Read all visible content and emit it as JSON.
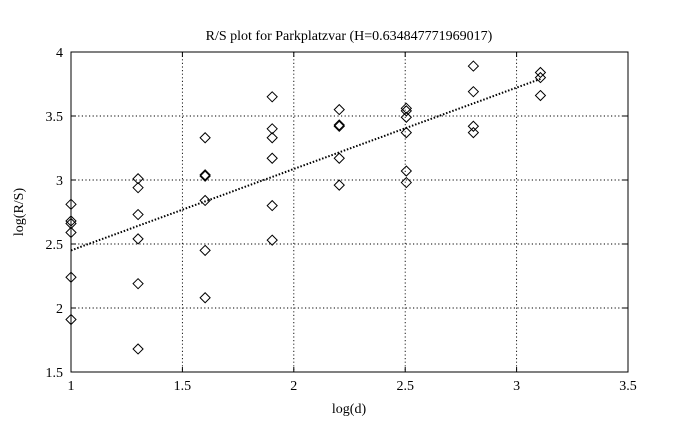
{
  "chart_data": {
    "type": "scatter",
    "title": "R/S plot for Parkplatzvar (H=0.634847771969017)",
    "xlabel": "log(d)",
    "ylabel": "log(R/S)",
    "xlim": [
      1,
      3.5
    ],
    "ylim": [
      1.5,
      4
    ],
    "xticks": [
      "1",
      "1.5",
      "2",
      "2.5",
      "3",
      "3.5"
    ],
    "yticks": [
      "1.5",
      "2",
      "2.5",
      "3",
      "3.5",
      "4"
    ],
    "grid": true,
    "marker": "diamond",
    "points": [
      {
        "x": 1.0,
        "y": 2.81
      },
      {
        "x": 1.0,
        "y": 2.68
      },
      {
        "x": 1.0,
        "y": 2.66
      },
      {
        "x": 1.0,
        "y": 2.59
      },
      {
        "x": 1.0,
        "y": 2.24
      },
      {
        "x": 1.0,
        "y": 1.91
      },
      {
        "x": 1.301,
        "y": 3.01
      },
      {
        "x": 1.301,
        "y": 2.94
      },
      {
        "x": 1.301,
        "y": 2.73
      },
      {
        "x": 1.301,
        "y": 2.54
      },
      {
        "x": 1.301,
        "y": 2.19
      },
      {
        "x": 1.301,
        "y": 1.68
      },
      {
        "x": 1.602,
        "y": 3.33
      },
      {
        "x": 1.602,
        "y": 3.04
      },
      {
        "x": 1.602,
        "y": 3.03
      },
      {
        "x": 1.602,
        "y": 2.84
      },
      {
        "x": 1.602,
        "y": 2.45
      },
      {
        "x": 1.602,
        "y": 2.08
      },
      {
        "x": 1.903,
        "y": 3.65
      },
      {
        "x": 1.903,
        "y": 3.4
      },
      {
        "x": 1.903,
        "y": 3.33
      },
      {
        "x": 1.903,
        "y": 3.17
      },
      {
        "x": 1.903,
        "y": 2.8
      },
      {
        "x": 1.903,
        "y": 2.53
      },
      {
        "x": 2.204,
        "y": 3.55
      },
      {
        "x": 2.204,
        "y": 3.43
      },
      {
        "x": 2.204,
        "y": 3.42
      },
      {
        "x": 2.204,
        "y": 3.17
      },
      {
        "x": 2.204,
        "y": 2.96
      },
      {
        "x": 2.505,
        "y": 3.56
      },
      {
        "x": 2.505,
        "y": 3.54
      },
      {
        "x": 2.505,
        "y": 3.49
      },
      {
        "x": 2.505,
        "y": 3.37
      },
      {
        "x": 2.505,
        "y": 3.07
      },
      {
        "x": 2.505,
        "y": 2.98
      },
      {
        "x": 2.806,
        "y": 3.89
      },
      {
        "x": 2.806,
        "y": 3.69
      },
      {
        "x": 2.806,
        "y": 3.42
      },
      {
        "x": 2.806,
        "y": 3.37
      },
      {
        "x": 3.107,
        "y": 3.84
      },
      {
        "x": 3.107,
        "y": 3.8
      },
      {
        "x": 3.107,
        "y": 3.66
      }
    ],
    "fit_line": {
      "x": [
        1.0,
        3.107
      ],
      "y": [
        2.45,
        3.79
      ],
      "style": "dotted"
    },
    "colors": {
      "marker": "#000000",
      "grid": "#000000",
      "line": "#000000"
    }
  }
}
